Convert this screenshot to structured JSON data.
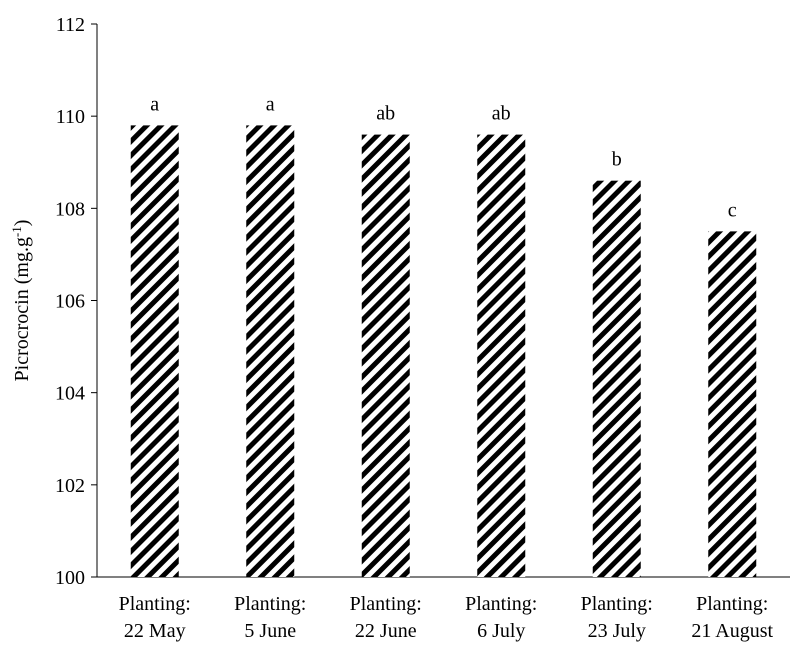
{
  "chart_data": {
    "type": "bar",
    "categories": [
      [
        "Planting:",
        "22 May"
      ],
      [
        "Planting:",
        "5 June"
      ],
      [
        "Planting:",
        "22 June"
      ],
      [
        "Planting:",
        "6 July"
      ],
      [
        "Planting:",
        "23 July"
      ],
      [
        "Planting:",
        "21 August"
      ]
    ],
    "values": [
      109.8,
      109.8,
      109.6,
      109.6,
      108.6,
      107.5
    ],
    "data_labels": [
      "a",
      "a",
      "ab",
      "ab",
      "b",
      "c"
    ],
    "title": "",
    "xlabel": "",
    "ylabel": {
      "base": "Picrocrocin (mg.g",
      "sup": "-1",
      "close": ")"
    },
    "ylim": [
      100,
      112
    ],
    "yticks": [
      100,
      102,
      104,
      106,
      108,
      110,
      112
    ],
    "grid": false,
    "legend": "none",
    "bar_pattern": "diagonal-hatch",
    "colors": {
      "hatch": "#000000",
      "background": "#ffffff",
      "axis": "#000000"
    }
  }
}
